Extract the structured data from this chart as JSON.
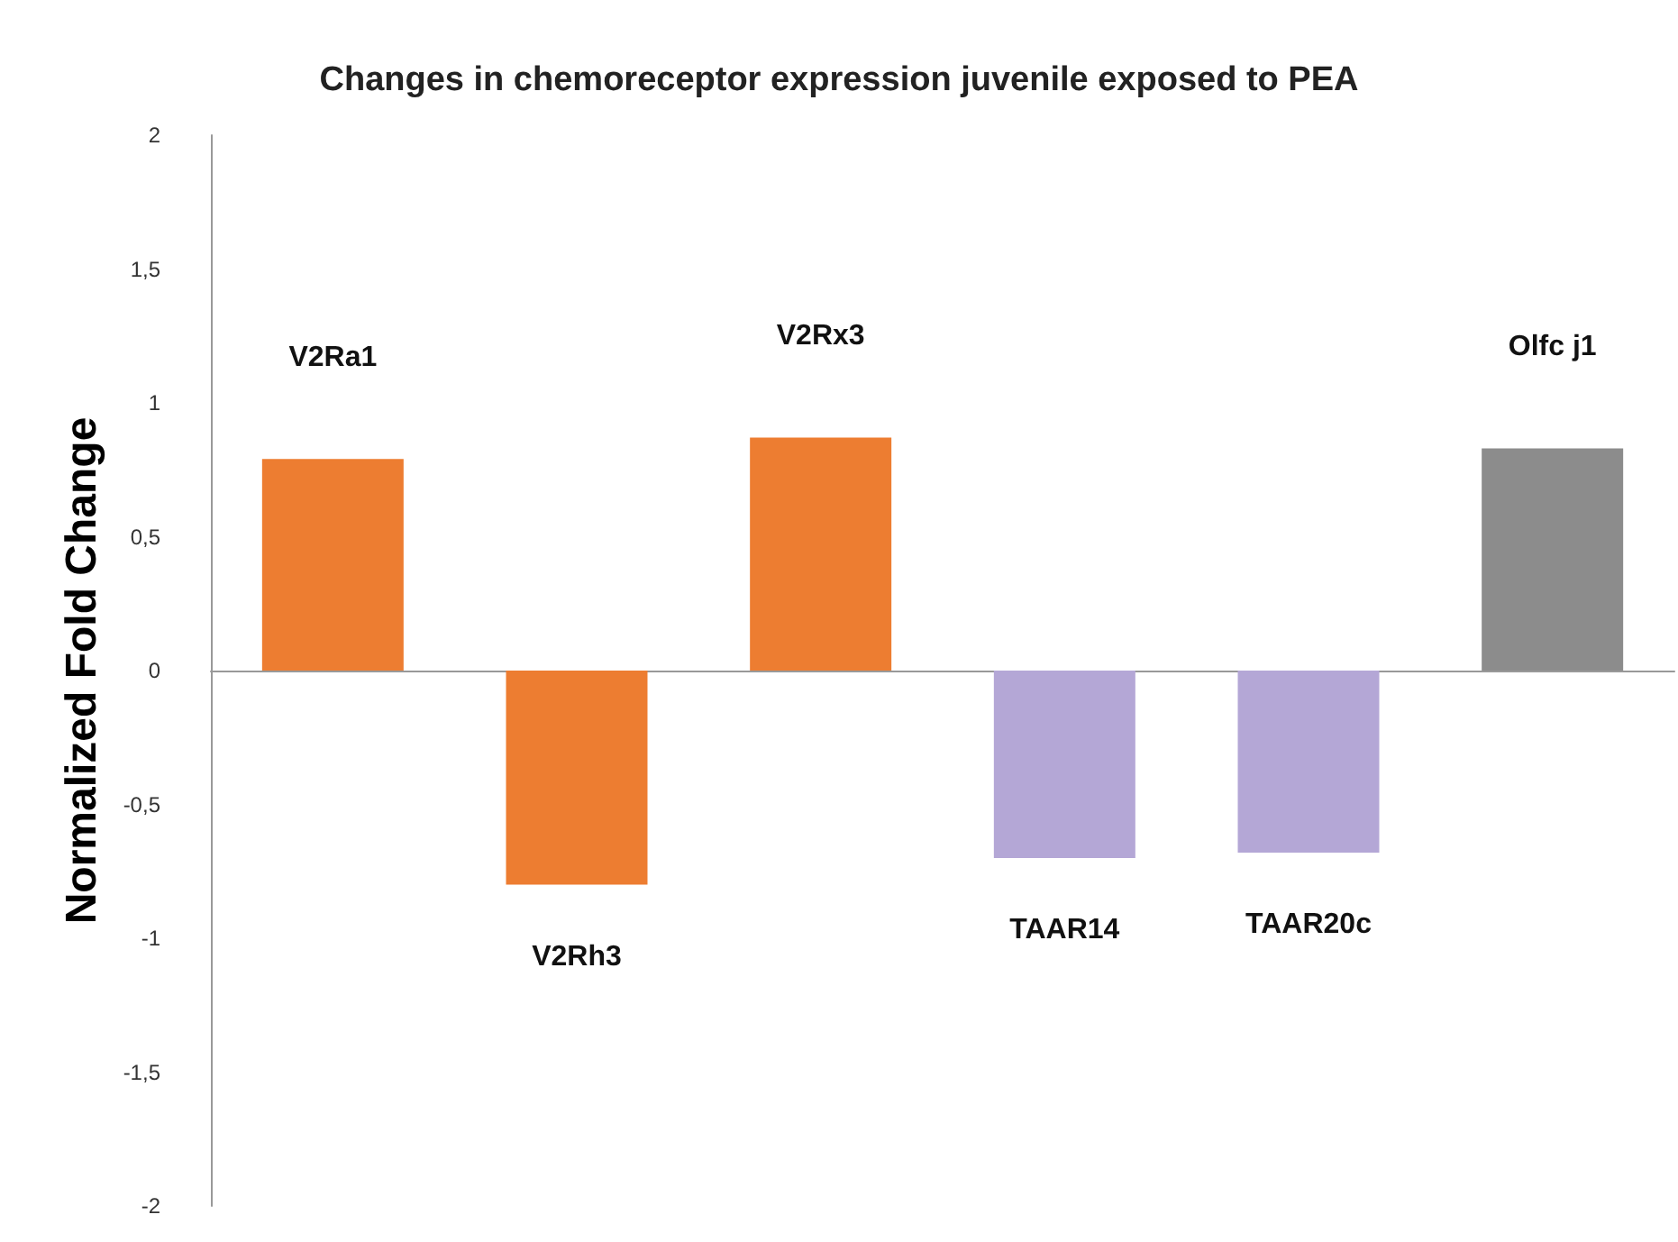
{
  "chart_data": {
    "type": "bar",
    "title": "Changes in chemoreceptor expression juvenile exposed to PEA",
    "ylabel": "Normalized Fold Change",
    "categories": [
      "V2Ra1",
      "V2Rh3",
      "V2Rx3",
      "TAAR14",
      "TAAR20c",
      "Olfc j1"
    ],
    "values": [
      0.79,
      -0.8,
      0.87,
      -0.7,
      -0.68,
      0.83
    ],
    "colors": [
      "#ed7d31",
      "#ed7d31",
      "#ed7d31",
      "#b4a7d6",
      "#b4a7d6",
      "#8c8c8c"
    ],
    "ylim": [
      -2,
      2
    ],
    "yticks": [
      {
        "value": -2,
        "label": "-2"
      },
      {
        "value": -1.5,
        "label": "-1,5"
      },
      {
        "value": -1,
        "label": "-1"
      },
      {
        "value": -0.5,
        "label": "-0,5"
      },
      {
        "value": 0,
        "label": "0"
      },
      {
        "value": 0.5,
        "label": "0,5"
      },
      {
        "value": 1,
        "label": "1"
      },
      {
        "value": 1.5,
        "label": "1,5"
      },
      {
        "value": 2,
        "label": "2"
      }
    ]
  }
}
